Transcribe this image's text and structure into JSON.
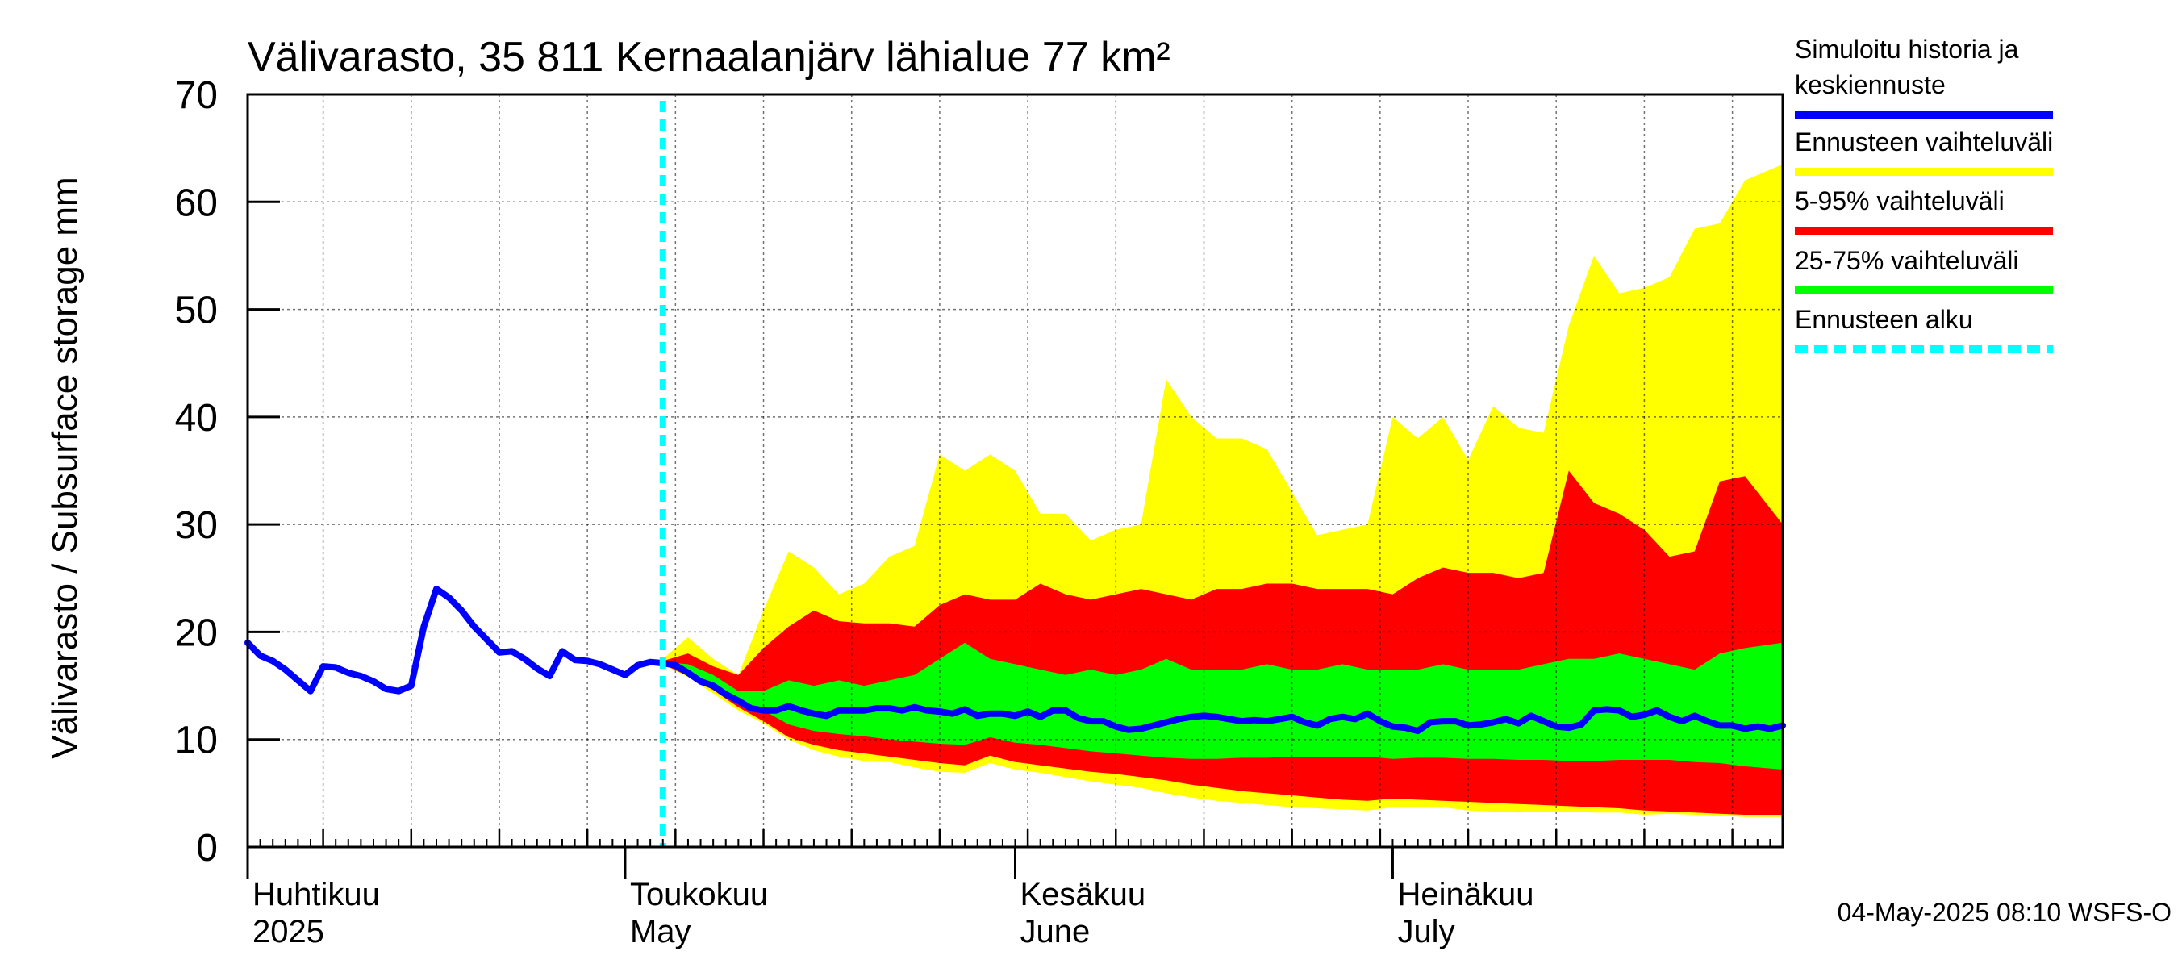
{
  "chart_data": {
    "type": "area",
    "title": "Välivarasto, 35 811 Kernaalanjärv lähialue 77 km²",
    "ylabel": "Välivarasto / Subsurface storage  mm",
    "ylim": [
      0,
      70
    ],
    "y_ticks": [
      0,
      10,
      20,
      30,
      40,
      50,
      60,
      70
    ],
    "x_range": [
      "2025-04-01",
      "2025-08-01"
    ],
    "grid": true,
    "legend_position": "right",
    "forecast_start": "2025-05-04",
    "footer": "04-May-2025 08:10 WSFS-O",
    "month_labels": [
      {
        "date": "2025-04-01",
        "fi": "Huhtikuu",
        "en": "2025"
      },
      {
        "date": "2025-05-01",
        "fi": "Toukokuu",
        "en": "May"
      },
      {
        "date": "2025-06-01",
        "fi": "Kesäkuu",
        "en": "June"
      },
      {
        "date": "2025-07-01",
        "fi": "Heinäkuu",
        "en": "July"
      }
    ],
    "legend": [
      {
        "label_lines": [
          "Simuloitu historia ja",
          "keskiennuste"
        ],
        "color": "#0000ff",
        "style": "solid"
      },
      {
        "label_lines": [
          "Ennusteen vaihteluväli"
        ],
        "color": "#ffff00",
        "style": "solid"
      },
      {
        "label_lines": [
          "5-95% vaihteluväli"
        ],
        "color": "#ff0000",
        "style": "solid"
      },
      {
        "label_lines": [
          "25-75% vaihteluväli"
        ],
        "color": "#00ff00",
        "style": "solid"
      },
      {
        "label_lines": [
          "Ennusteen alku"
        ],
        "color": "#00ffff",
        "style": "dashed"
      }
    ],
    "series": [
      {
        "name": "Simuloitu historia ja keskiennuste",
        "color": "#0000ff",
        "points": [
          [
            "2025-04-01",
            19.0
          ],
          [
            "2025-04-02",
            17.8
          ],
          [
            "2025-04-03",
            17.3
          ],
          [
            "2025-04-04",
            16.5
          ],
          [
            "2025-04-05",
            15.5
          ],
          [
            "2025-04-06",
            14.5
          ],
          [
            "2025-04-07",
            16.8
          ],
          [
            "2025-04-08",
            16.7
          ],
          [
            "2025-04-09",
            16.2
          ],
          [
            "2025-04-10",
            15.9
          ],
          [
            "2025-04-11",
            15.4
          ],
          [
            "2025-04-12",
            14.7
          ],
          [
            "2025-04-13",
            14.5
          ],
          [
            "2025-04-14",
            15.0
          ],
          [
            "2025-04-15",
            20.5
          ],
          [
            "2025-04-16",
            24.0
          ],
          [
            "2025-04-17",
            23.2
          ],
          [
            "2025-04-18",
            22.0
          ],
          [
            "2025-04-19",
            20.5
          ],
          [
            "2025-04-20",
            19.3
          ],
          [
            "2025-04-21",
            18.1
          ],
          [
            "2025-04-22",
            18.2
          ],
          [
            "2025-04-23",
            17.5
          ],
          [
            "2025-04-24",
            16.6
          ],
          [
            "2025-04-25",
            15.9
          ],
          [
            "2025-04-26",
            18.2
          ],
          [
            "2025-04-27",
            17.4
          ],
          [
            "2025-04-28",
            17.3
          ],
          [
            "2025-04-29",
            17.0
          ],
          [
            "2025-04-30",
            16.5
          ],
          [
            "2025-05-01",
            16.0
          ],
          [
            "2025-05-02",
            16.9
          ],
          [
            "2025-05-03",
            17.2
          ],
          [
            "2025-05-04",
            17.1
          ],
          [
            "2025-05-05",
            16.9
          ],
          [
            "2025-05-06",
            16.2
          ],
          [
            "2025-05-07",
            15.4
          ],
          [
            "2025-05-08",
            15.0
          ],
          [
            "2025-05-09",
            14.2
          ],
          [
            "2025-05-10",
            13.6
          ],
          [
            "2025-05-11",
            12.9
          ],
          [
            "2025-05-12",
            12.7
          ],
          [
            "2025-05-13",
            12.7
          ],
          [
            "2025-05-14",
            13.1
          ],
          [
            "2025-05-15",
            12.7
          ],
          [
            "2025-05-16",
            12.4
          ],
          [
            "2025-05-17",
            12.2
          ],
          [
            "2025-05-18",
            12.7
          ],
          [
            "2025-05-19",
            12.7
          ],
          [
            "2025-05-20",
            12.7
          ],
          [
            "2025-05-21",
            12.9
          ],
          [
            "2025-05-22",
            12.9
          ],
          [
            "2025-05-23",
            12.7
          ],
          [
            "2025-05-24",
            13.0
          ],
          [
            "2025-05-25",
            12.7
          ],
          [
            "2025-05-26",
            12.6
          ],
          [
            "2025-05-27",
            12.4
          ],
          [
            "2025-05-28",
            12.8
          ],
          [
            "2025-05-29",
            12.2
          ],
          [
            "2025-05-30",
            12.4
          ],
          [
            "2025-05-31",
            12.4
          ],
          [
            "2025-06-01",
            12.2
          ],
          [
            "2025-06-02",
            12.6
          ],
          [
            "2025-06-03",
            12.1
          ],
          [
            "2025-06-04",
            12.7
          ],
          [
            "2025-06-05",
            12.7
          ],
          [
            "2025-06-06",
            12.0
          ],
          [
            "2025-06-07",
            11.7
          ],
          [
            "2025-06-08",
            11.7
          ],
          [
            "2025-06-09",
            11.2
          ],
          [
            "2025-06-10",
            10.9
          ],
          [
            "2025-06-11",
            11.0
          ],
          [
            "2025-06-12",
            11.3
          ],
          [
            "2025-06-13",
            11.6
          ],
          [
            "2025-06-14",
            11.9
          ],
          [
            "2025-06-15",
            12.1
          ],
          [
            "2025-06-16",
            12.2
          ],
          [
            "2025-06-17",
            12.1
          ],
          [
            "2025-06-18",
            11.9
          ],
          [
            "2025-06-19",
            11.7
          ],
          [
            "2025-06-20",
            11.8
          ],
          [
            "2025-06-21",
            11.7
          ],
          [
            "2025-06-22",
            11.9
          ],
          [
            "2025-06-23",
            12.1
          ],
          [
            "2025-06-24",
            11.6
          ],
          [
            "2025-06-25",
            11.3
          ],
          [
            "2025-06-26",
            11.9
          ],
          [
            "2025-06-27",
            12.1
          ],
          [
            "2025-06-28",
            11.9
          ],
          [
            "2025-06-29",
            12.4
          ],
          [
            "2025-06-30",
            11.7
          ],
          [
            "2025-07-01",
            11.2
          ],
          [
            "2025-07-02",
            11.1
          ],
          [
            "2025-07-03",
            10.8
          ],
          [
            "2025-07-04",
            11.6
          ],
          [
            "2025-07-05",
            11.7
          ],
          [
            "2025-07-06",
            11.7
          ],
          [
            "2025-07-07",
            11.3
          ],
          [
            "2025-07-08",
            11.4
          ],
          [
            "2025-07-09",
            11.6
          ],
          [
            "2025-07-10",
            11.9
          ],
          [
            "2025-07-11",
            11.5
          ],
          [
            "2025-07-12",
            12.2
          ],
          [
            "2025-07-13",
            11.7
          ],
          [
            "2025-07-14",
            11.2
          ],
          [
            "2025-07-15",
            11.1
          ],
          [
            "2025-07-16",
            11.4
          ],
          [
            "2025-07-17",
            12.7
          ],
          [
            "2025-07-18",
            12.8
          ],
          [
            "2025-07-19",
            12.7
          ],
          [
            "2025-07-20",
            12.1
          ],
          [
            "2025-07-21",
            12.3
          ],
          [
            "2025-07-22",
            12.7
          ],
          [
            "2025-07-23",
            12.1
          ],
          [
            "2025-07-24",
            11.7
          ],
          [
            "2025-07-25",
            12.2
          ],
          [
            "2025-07-26",
            11.7
          ],
          [
            "2025-07-27",
            11.3
          ],
          [
            "2025-07-28",
            11.3
          ],
          [
            "2025-07-29",
            11.0
          ],
          [
            "2025-07-30",
            11.2
          ],
          [
            "2025-07-31",
            11.0
          ],
          [
            "2025-08-01",
            11.3
          ]
        ]
      }
    ],
    "bands": [
      {
        "name": "Ennusteen vaihteluväli",
        "color": "#ffff00",
        "x": [
          "2025-05-04",
          "2025-05-06",
          "2025-05-08",
          "2025-05-10",
          "2025-05-12",
          "2025-05-14",
          "2025-05-16",
          "2025-05-18",
          "2025-05-20",
          "2025-05-22",
          "2025-05-24",
          "2025-05-26",
          "2025-05-28",
          "2025-05-30",
          "2025-06-01",
          "2025-06-03",
          "2025-06-05",
          "2025-06-07",
          "2025-06-09",
          "2025-06-11",
          "2025-06-13",
          "2025-06-15",
          "2025-06-17",
          "2025-06-19",
          "2025-06-21",
          "2025-06-23",
          "2025-06-25",
          "2025-06-27",
          "2025-06-29",
          "2025-07-01",
          "2025-07-03",
          "2025-07-05",
          "2025-07-07",
          "2025-07-09",
          "2025-07-11",
          "2025-07-13",
          "2025-07-15",
          "2025-07-17",
          "2025-07-19",
          "2025-07-21",
          "2025-07-23",
          "2025-07-25",
          "2025-07-27",
          "2025-07-29",
          "2025-08-01"
        ],
        "upper": [
          17.5,
          19.5,
          17.5,
          16.0,
          22.0,
          27.5,
          26.0,
          23.5,
          24.5,
          27.0,
          28.0,
          36.5,
          35.0,
          36.5,
          35.0,
          31.0,
          31.0,
          28.5,
          29.5,
          30.0,
          43.5,
          40.0,
          38.0,
          38.0,
          37.0,
          33.0,
          29.0,
          29.5,
          30.0,
          40.0,
          38.0,
          40.0,
          36.0,
          41.0,
          39.0,
          38.5,
          48.5,
          55.0,
          51.5,
          52.0,
          53.0,
          57.5,
          58.0,
          62.0,
          63.5
        ],
        "lower": [
          17.0,
          15.8,
          14.3,
          12.7,
          11.5,
          10.0,
          9.0,
          8.4,
          8.0,
          7.9,
          7.4,
          7.0,
          6.9,
          7.8,
          7.2,
          6.9,
          6.5,
          6.1,
          5.8,
          5.5,
          5.0,
          4.6,
          4.3,
          4.1,
          3.9,
          3.7,
          3.6,
          3.5,
          3.4,
          3.7,
          3.7,
          3.7,
          3.4,
          3.3,
          3.2,
          3.3,
          3.3,
          3.2,
          3.2,
          3.0,
          3.1,
          3.0,
          2.9,
          2.8,
          2.8
        ]
      },
      {
        "name": "5-95% vaihteluväli",
        "color": "#ff0000",
        "x": [
          "2025-05-04",
          "2025-05-06",
          "2025-05-08",
          "2025-05-10",
          "2025-05-12",
          "2025-05-14",
          "2025-05-16",
          "2025-05-18",
          "2025-05-20",
          "2025-05-22",
          "2025-05-24",
          "2025-05-26",
          "2025-05-28",
          "2025-05-30",
          "2025-06-01",
          "2025-06-03",
          "2025-06-05",
          "2025-06-07",
          "2025-06-09",
          "2025-06-11",
          "2025-06-13",
          "2025-06-15",
          "2025-06-17",
          "2025-06-19",
          "2025-06-21",
          "2025-06-23",
          "2025-06-25",
          "2025-06-27",
          "2025-06-29",
          "2025-07-01",
          "2025-07-03",
          "2025-07-05",
          "2025-07-07",
          "2025-07-09",
          "2025-07-11",
          "2025-07-13",
          "2025-07-15",
          "2025-07-17",
          "2025-07-19",
          "2025-07-21",
          "2025-07-23",
          "2025-07-25",
          "2025-07-27",
          "2025-07-29",
          "2025-08-01"
        ],
        "upper": [
          17.3,
          18.0,
          16.8,
          16.0,
          18.5,
          20.5,
          22.0,
          21.0,
          20.8,
          20.8,
          20.5,
          22.5,
          23.5,
          23.0,
          23.0,
          24.5,
          23.5,
          23.0,
          23.5,
          24.0,
          23.5,
          23.0,
          24.0,
          24.0,
          24.5,
          24.5,
          24.0,
          24.0,
          24.0,
          23.5,
          25.0,
          26.0,
          25.5,
          25.5,
          25.0,
          25.5,
          35.0,
          32.0,
          31.0,
          29.5,
          27.0,
          27.5,
          34.0,
          34.5,
          30.0
        ],
        "lower": [
          17.0,
          15.9,
          14.6,
          13.0,
          11.7,
          10.2,
          9.5,
          9.0,
          8.7,
          8.4,
          8.1,
          7.8,
          7.6,
          8.5,
          7.9,
          7.6,
          7.3,
          7.0,
          6.8,
          6.5,
          6.2,
          5.8,
          5.5,
          5.2,
          5.0,
          4.8,
          4.6,
          4.4,
          4.3,
          4.5,
          4.4,
          4.3,
          4.2,
          4.1,
          4.0,
          3.9,
          3.8,
          3.7,
          3.6,
          3.4,
          3.3,
          3.2,
          3.1,
          3.0,
          3.0
        ]
      },
      {
        "name": "25-75% vaihteluväli",
        "color": "#00ff00",
        "x": [
          "2025-05-04",
          "2025-05-06",
          "2025-05-08",
          "2025-05-10",
          "2025-05-12",
          "2025-05-14",
          "2025-05-16",
          "2025-05-18",
          "2025-05-20",
          "2025-05-22",
          "2025-05-24",
          "2025-05-26",
          "2025-05-28",
          "2025-05-30",
          "2025-06-01",
          "2025-06-03",
          "2025-06-05",
          "2025-06-07",
          "2025-06-09",
          "2025-06-11",
          "2025-06-13",
          "2025-06-15",
          "2025-06-17",
          "2025-06-19",
          "2025-06-21",
          "2025-06-23",
          "2025-06-25",
          "2025-06-27",
          "2025-06-29",
          "2025-07-01",
          "2025-07-03",
          "2025-07-05",
          "2025-07-07",
          "2025-07-09",
          "2025-07-11",
          "2025-07-13",
          "2025-07-15",
          "2025-07-17",
          "2025-07-19",
          "2025-07-21",
          "2025-07-23",
          "2025-07-25",
          "2025-07-27",
          "2025-07-29",
          "2025-08-01"
        ],
        "upper": [
          17.2,
          17.0,
          16.0,
          14.5,
          14.5,
          15.5,
          15.0,
          15.5,
          15.0,
          15.5,
          16.0,
          17.5,
          19.0,
          17.5,
          17.0,
          16.5,
          16.0,
          16.5,
          16.0,
          16.5,
          17.5,
          16.5,
          16.5,
          16.5,
          17.0,
          16.5,
          16.5,
          17.0,
          16.5,
          16.5,
          16.5,
          17.0,
          16.5,
          16.5,
          16.5,
          17.0,
          17.5,
          17.5,
          18.0,
          17.5,
          17.0,
          16.5,
          18.0,
          18.5,
          19.0
        ],
        "lower": [
          17.0,
          16.2,
          15.0,
          13.8,
          12.7,
          11.4,
          10.8,
          10.5,
          10.3,
          10.0,
          9.8,
          9.6,
          9.5,
          10.2,
          9.7,
          9.5,
          9.2,
          8.9,
          8.7,
          8.5,
          8.3,
          8.2,
          8.2,
          8.3,
          8.3,
          8.4,
          8.4,
          8.4,
          8.4,
          8.2,
          8.3,
          8.3,
          8.2,
          8.2,
          8.1,
          8.1,
          8.0,
          8.0,
          8.1,
          8.1,
          8.1,
          7.9,
          7.8,
          7.5,
          7.2
        ]
      }
    ]
  }
}
